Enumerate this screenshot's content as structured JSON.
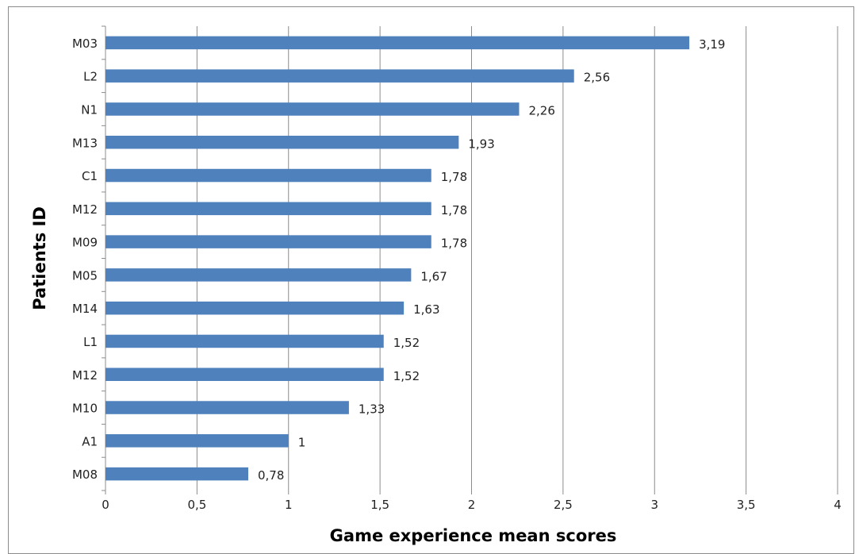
{
  "chart_data": {
    "type": "bar",
    "orientation": "horizontal",
    "categories": [
      "M03",
      "L2",
      "N1",
      "M13",
      "C1",
      "M12",
      "M09",
      "M05",
      "M14",
      "L1",
      "M12",
      "M10",
      "A1",
      "M08"
    ],
    "values": [
      3.19,
      2.56,
      2.26,
      1.93,
      1.78,
      1.78,
      1.78,
      1.67,
      1.63,
      1.52,
      1.52,
      1.33,
      1,
      0.78
    ],
    "value_labels": [
      "3,19",
      "2,56",
      "2,26",
      "1,93",
      "1,78",
      "1,78",
      "1,78",
      "1,67",
      "1,63",
      "1,52",
      "1,52",
      "1,33",
      "1",
      "0,78"
    ],
    "x_ticks": [
      0,
      0.5,
      1,
      1.5,
      2,
      2.5,
      3,
      3.5,
      4
    ],
    "x_tick_labels": [
      "0",
      "0,5",
      "1",
      "1,5",
      "2",
      "2,5",
      "3",
      "3,5",
      "4"
    ],
    "xlim": [
      0,
      4
    ],
    "xlabel": "Game experience mean scores",
    "ylabel": "Patients ID",
    "title": "",
    "grid": "vertical",
    "legend": "none",
    "bar_color": "#4f81bd"
  }
}
